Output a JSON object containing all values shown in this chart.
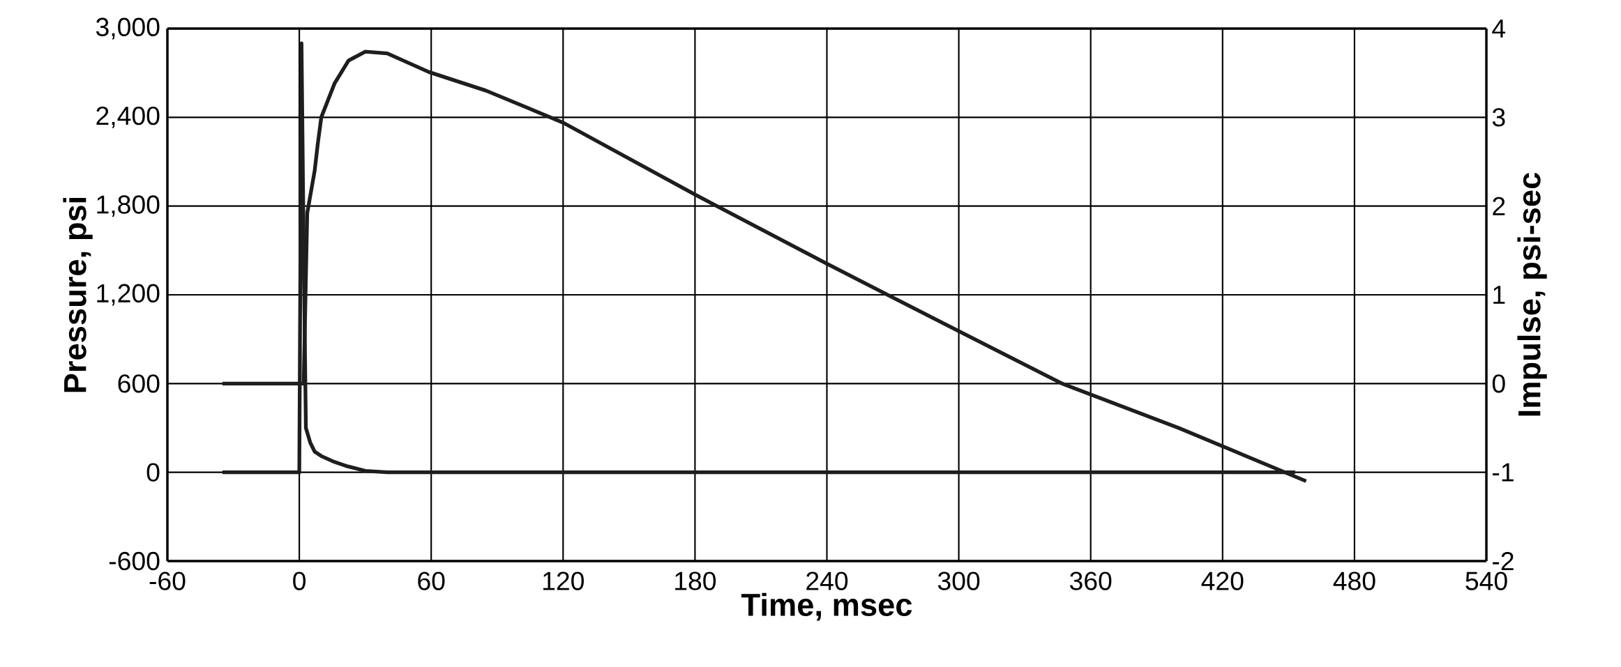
{
  "chart_data": {
    "type": "line",
    "xlabel": "Time, msec",
    "ylabel": "Pressure, psi",
    "y2label": "Impulse, psi-sec",
    "xlim": [
      -60,
      540
    ],
    "xticks": [
      -60,
      0,
      60,
      120,
      180,
      240,
      300,
      360,
      420,
      480,
      540
    ],
    "ylim": [
      -600,
      3000
    ],
    "yticks": [
      -600,
      0,
      600,
      {
        "value": 1200,
        "label": "1,200"
      },
      {
        "value": 1800,
        "label": "1,800"
      },
      {
        "value": 2400,
        "label": "2,400"
      },
      {
        "value": 3000,
        "label": "3,000"
      }
    ],
    "y2lim": [
      -2,
      4
    ],
    "y2ticks": [
      -2,
      -1,
      0,
      1,
      2,
      3,
      4
    ],
    "grid": true,
    "series": [
      {
        "color": "#1e1e1e",
        "x": [
          -35,
          0,
          1,
          2,
          3,
          5,
          7,
          10,
          16,
          22,
          30,
          40,
          453
        ],
        "values": [
          0,
          0,
          2900,
          1500,
          300,
          200,
          140,
          110,
          70,
          40,
          10,
          0,
          0
        ]
      },
      {
        "color": "#1e1e1e",
        "axis": "y2",
        "x": [
          -35,
          0,
          2,
          3.6,
          7,
          8.4,
          10,
          16,
          22.4,
          30,
          40,
          59,
          85,
          120,
          180,
          240,
          300,
          347,
          400,
          458
        ],
        "values": [
          0,
          0,
          0,
          1.92,
          2.4,
          2.7,
          3.0,
          3.38,
          3.64,
          3.74,
          3.72,
          3.51,
          3.3,
          2.94,
          2.13,
          1.35,
          0.59,
          0.0,
          -0.5,
          -1.1
        ]
      }
    ]
  }
}
